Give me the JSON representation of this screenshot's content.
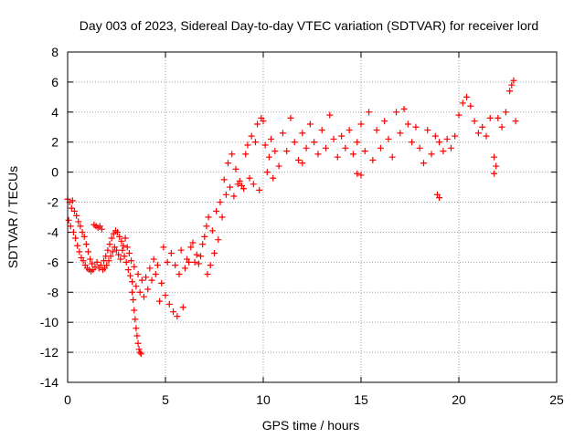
{
  "chart_data": {
    "type": "scatter",
    "title": "Day 003 of 2023, Sidereal Day-to-day VTEC variation (SDTVAR) for receiver lord",
    "xlabel": "GPS time / hours",
    "ylabel": "SDTVAR / TECUs",
    "xlim": [
      0,
      25
    ],
    "ylim": [
      -14,
      8
    ],
    "xticks": [
      "0",
      "5",
      "10",
      "15",
      "20",
      "25"
    ],
    "yticks": [
      "-14",
      "-12",
      "-10",
      "-8",
      "-6",
      "-4",
      "-2",
      "0",
      "2",
      "4",
      "6",
      "8"
    ],
    "grid": true,
    "marker": "+",
    "colors": {
      "series": "#ff0000",
      "grid": "#a0a0a0"
    },
    "series": [
      {
        "name": "SDTVAR",
        "points": [
          [
            0.0,
            -1.8
          ],
          [
            0.05,
            -3.2
          ],
          [
            0.1,
            -2.0
          ],
          [
            0.15,
            -3.6
          ],
          [
            0.2,
            -2.4
          ],
          [
            0.25,
            -1.9
          ],
          [
            0.3,
            -4.0
          ],
          [
            0.35,
            -2.6
          ],
          [
            0.4,
            -4.4
          ],
          [
            0.45,
            -2.9
          ],
          [
            0.5,
            -4.9
          ],
          [
            0.55,
            -3.3
          ],
          [
            0.6,
            -5.3
          ],
          [
            0.65,
            -3.6
          ],
          [
            0.7,
            -5.7
          ],
          [
            0.75,
            -4.0
          ],
          [
            0.8,
            -5.9
          ],
          [
            0.85,
            -4.3
          ],
          [
            0.9,
            -6.2
          ],
          [
            0.95,
            -4.8
          ],
          [
            1.0,
            -6.4
          ],
          [
            1.05,
            -5.3
          ],
          [
            1.1,
            -6.5
          ],
          [
            1.15,
            -5.8
          ],
          [
            1.2,
            -6.6
          ],
          [
            1.25,
            -6.1
          ],
          [
            1.3,
            -6.5
          ],
          [
            1.35,
            -3.5
          ],
          [
            1.4,
            -6.3
          ],
          [
            1.45,
            -3.6
          ],
          [
            1.5,
            -6.0
          ],
          [
            1.55,
            -3.7
          ],
          [
            1.6,
            -6.4
          ],
          [
            1.65,
            -3.6
          ],
          [
            1.7,
            -6.2
          ],
          [
            1.75,
            -3.8
          ],
          [
            1.8,
            -6.5
          ],
          [
            1.85,
            -5.9
          ],
          [
            1.9,
            -6.4
          ],
          [
            1.95,
            -5.6
          ],
          [
            2.0,
            -6.2
          ],
          [
            2.05,
            -5.2
          ],
          [
            2.1,
            -5.9
          ],
          [
            2.15,
            -4.8
          ],
          [
            2.2,
            -5.6
          ],
          [
            2.25,
            -4.4
          ],
          [
            2.3,
            -5.3
          ],
          [
            2.35,
            -4.1
          ],
          [
            2.4,
            -5.0
          ],
          [
            2.45,
            -3.9
          ],
          [
            2.5,
            -5.2
          ],
          [
            2.55,
            -4.0
          ],
          [
            2.6,
            -5.5
          ],
          [
            2.65,
            -4.3
          ],
          [
            2.7,
            -5.8
          ],
          [
            2.75,
            -4.6
          ],
          [
            2.8,
            -5.2
          ],
          [
            2.85,
            -4.9
          ],
          [
            2.9,
            -5.6
          ],
          [
            2.95,
            -4.4
          ],
          [
            3.0,
            -6.0
          ],
          [
            3.05,
            -5.0
          ],
          [
            3.1,
            -6.5
          ],
          [
            3.15,
            -5.4
          ],
          [
            3.2,
            -6.9
          ],
          [
            3.25,
            -5.9
          ],
          [
            3.3,
            -7.3
          ],
          [
            3.3,
            -8.0
          ],
          [
            3.35,
            -8.5
          ],
          [
            3.4,
            -9.2
          ],
          [
            3.45,
            -9.8
          ],
          [
            3.5,
            -10.4
          ],
          [
            3.55,
            -10.9
          ],
          [
            3.6,
            -11.4
          ],
          [
            3.65,
            -11.8
          ],
          [
            3.7,
            -12.0
          ],
          [
            3.75,
            -12.1
          ],
          [
            3.4,
            -6.3
          ],
          [
            3.5,
            -7.6
          ],
          [
            3.6,
            -6.8
          ],
          [
            3.7,
            -8.0
          ],
          [
            3.8,
            -7.2
          ],
          [
            3.9,
            -8.3
          ],
          [
            4.0,
            -7.0
          ],
          [
            4.1,
            -7.8
          ],
          [
            4.2,
            -6.4
          ],
          [
            4.3,
            -7.2
          ],
          [
            4.4,
            -5.8
          ],
          [
            4.5,
            -6.8
          ],
          [
            4.6,
            -6.2
          ],
          [
            4.7,
            -8.6
          ],
          [
            4.8,
            -7.4
          ],
          [
            4.9,
            -5.0
          ],
          [
            5.0,
            -8.2
          ],
          [
            5.1,
            -6.0
          ],
          [
            5.2,
            -8.8
          ],
          [
            5.3,
            -5.4
          ],
          [
            5.4,
            -9.3
          ],
          [
            5.5,
            -6.2
          ],
          [
            5.6,
            -9.6
          ],
          [
            5.7,
            -6.8
          ],
          [
            5.8,
            -5.2
          ],
          [
            5.9,
            -9.0
          ],
          [
            6.0,
            -6.4
          ],
          [
            6.1,
            -5.8
          ],
          [
            6.2,
            -6.0
          ],
          [
            6.3,
            -5.0
          ],
          [
            6.4,
            -4.7
          ],
          [
            6.5,
            -6.0
          ],
          [
            6.6,
            -5.5
          ],
          [
            6.7,
            -6.1
          ],
          [
            6.8,
            -5.6
          ],
          [
            6.9,
            -4.8
          ],
          [
            7.0,
            -4.3
          ],
          [
            7.1,
            -3.6
          ],
          [
            7.15,
            -6.8
          ],
          [
            7.2,
            -3.0
          ],
          [
            7.3,
            -6.2
          ],
          [
            7.4,
            -3.9
          ],
          [
            7.5,
            -5.4
          ],
          [
            7.6,
            -2.6
          ],
          [
            7.7,
            -4.5
          ],
          [
            7.8,
            -2.0
          ],
          [
            7.9,
            -3.0
          ],
          [
            8.0,
            -0.5
          ],
          [
            8.1,
            -1.5
          ],
          [
            8.2,
            0.6
          ],
          [
            8.3,
            -1.0
          ],
          [
            8.4,
            1.2
          ],
          [
            8.5,
            -1.6
          ],
          [
            8.6,
            0.2
          ],
          [
            8.7,
            -0.8
          ],
          [
            8.8,
            -0.6
          ],
          [
            8.9,
            -0.9
          ],
          [
            9.0,
            -1.1
          ],
          [
            9.1,
            1.2
          ],
          [
            9.2,
            1.8
          ],
          [
            9.3,
            -0.4
          ],
          [
            9.4,
            2.4
          ],
          [
            9.5,
            -0.8
          ],
          [
            9.6,
            2.0
          ],
          [
            9.7,
            3.2
          ],
          [
            9.8,
            -1.2
          ],
          [
            9.9,
            3.6
          ],
          [
            10.0,
            3.4
          ],
          [
            10.1,
            1.8
          ],
          [
            10.2,
            0.0
          ],
          [
            10.3,
            1.0
          ],
          [
            10.4,
            2.2
          ],
          [
            10.5,
            -0.4
          ],
          [
            10.6,
            1.4
          ],
          [
            10.8,
            0.4
          ],
          [
            11.0,
            2.6
          ],
          [
            11.2,
            1.4
          ],
          [
            11.4,
            3.6
          ],
          [
            11.6,
            2.0
          ],
          [
            11.8,
            0.8
          ],
          [
            12.0,
            2.6
          ],
          [
            12.2,
            1.6
          ],
          [
            12.4,
            3.2
          ],
          [
            12.6,
            2.0
          ],
          [
            12.8,
            1.2
          ],
          [
            13.0,
            2.8
          ],
          [
            13.2,
            1.6
          ],
          [
            13.4,
            3.8
          ],
          [
            13.6,
            2.2
          ],
          [
            13.8,
            1.0
          ],
          [
            14.0,
            2.4
          ],
          [
            14.2,
            1.6
          ],
          [
            14.4,
            2.8
          ],
          [
            14.6,
            1.2
          ],
          [
            14.8,
            2.0
          ],
          [
            15.0,
            3.2
          ],
          [
            15.2,
            1.4
          ],
          [
            15.4,
            4.0
          ],
          [
            15.6,
            0.8
          ],
          [
            15.8,
            2.8
          ],
          [
            16.0,
            1.6
          ],
          [
            16.2,
            3.4
          ],
          [
            16.4,
            2.2
          ],
          [
            16.6,
            1.0
          ],
          [
            16.8,
            4.0
          ],
          [
            17.0,
            2.6
          ],
          [
            17.2,
            4.2
          ],
          [
            17.4,
            3.2
          ],
          [
            17.6,
            2.0
          ],
          [
            17.8,
            3.0
          ],
          [
            18.0,
            1.6
          ],
          [
            18.2,
            0.6
          ],
          [
            18.4,
            2.8
          ],
          [
            18.6,
            1.2
          ],
          [
            18.8,
            2.4
          ],
          [
            19.0,
            2.0
          ],
          [
            19.2,
            1.4
          ],
          [
            19.4,
            2.2
          ],
          [
            19.6,
            1.6
          ],
          [
            19.8,
            2.4
          ],
          [
            20.0,
            3.8
          ],
          [
            20.2,
            4.6
          ],
          [
            20.4,
            5.0
          ],
          [
            20.6,
            4.4
          ],
          [
            20.8,
            3.4
          ],
          [
            21.0,
            2.6
          ],
          [
            21.2,
            3.0
          ],
          [
            21.4,
            2.4
          ],
          [
            21.6,
            3.6
          ],
          [
            21.8,
            1.0
          ],
          [
            22.0,
            3.6
          ],
          [
            22.2,
            3.0
          ],
          [
            22.4,
            4.0
          ],
          [
            22.6,
            5.4
          ],
          [
            22.7,
            5.8
          ],
          [
            22.8,
            6.1
          ],
          [
            22.9,
            3.4
          ],
          [
            18.9,
            -1.5
          ],
          [
            19.0,
            -1.7
          ],
          [
            14.8,
            -0.1
          ],
          [
            15.0,
            -0.2
          ],
          [
            12.0,
            0.6
          ],
          [
            21.8,
            -0.1
          ],
          [
            21.9,
            0.4
          ]
        ]
      }
    ]
  }
}
